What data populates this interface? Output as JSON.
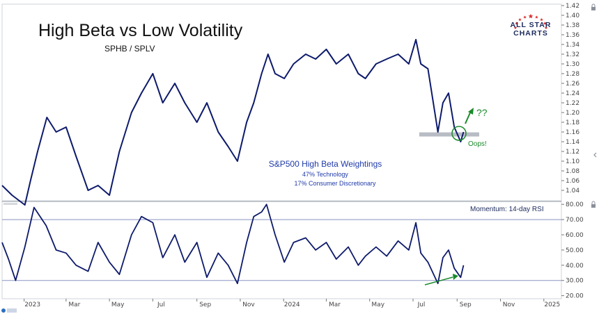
{
  "chart_data": [
    {
      "type": "line",
      "title": "High Beta vs Low Volatility",
      "subtitle": "SPHB / SPLV",
      "series": [
        {
          "x": [
            "2022-12-01",
            "2022-12-15",
            "2023-01-02",
            "2023-01-10",
            "2023-01-20",
            "2023-02-02",
            "2023-02-15",
            "2023-03-01",
            "2023-03-15",
            "2023-04-01",
            "2023-04-15",
            "2023-05-01",
            "2023-05-15",
            "2023-06-01",
            "2023-06-15",
            "2023-07-01",
            "2023-07-15",
            "2023-08-01",
            "2023-08-15",
            "2023-09-01",
            "2023-09-15",
            "2023-10-01",
            "2023-10-15",
            "2023-10-28",
            "2023-11-10",
            "2023-11-20",
            "2023-12-01",
            "2023-12-10",
            "2023-12-20",
            "2024-01-02",
            "2024-01-15",
            "2024-02-01",
            "2024-02-15",
            "2024-03-01",
            "2024-03-15",
            "2024-04-01",
            "2024-04-15",
            "2024-04-25",
            "2024-05-10",
            "2024-05-25",
            "2024-06-10",
            "2024-06-25",
            "2024-07-05",
            "2024-07-12",
            "2024-07-22",
            "2024-08-05",
            "2024-08-12",
            "2024-08-20",
            "2024-08-28",
            "2024-09-06",
            "2024-09-10"
          ],
          "values": [
            1.05,
            1.03,
            1.01,
            1.06,
            1.12,
            1.19,
            1.16,
            1.17,
            1.11,
            1.04,
            1.05,
            1.03,
            1.12,
            1.2,
            1.24,
            1.28,
            1.22,
            1.26,
            1.22,
            1.18,
            1.22,
            1.16,
            1.13,
            1.1,
            1.18,
            1.22,
            1.28,
            1.32,
            1.28,
            1.27,
            1.3,
            1.32,
            1.31,
            1.33,
            1.3,
            1.32,
            1.28,
            1.27,
            1.3,
            1.31,
            1.32,
            1.3,
            1.35,
            1.3,
            1.29,
            1.16,
            1.22,
            1.24,
            1.17,
            1.14,
            1.16
          ]
        }
      ],
      "y_ticks": [
        "1.42",
        "1.40",
        "1.38",
        "1.36",
        "1.34",
        "1.32",
        "1.30",
        "1.28",
        "1.26",
        "1.24",
        "1.22",
        "1.20",
        "1.18",
        "1.16",
        "1.14",
        "1.12",
        "1.10",
        "1.08",
        "1.06",
        "1.04"
      ],
      "ylim": [
        1.02,
        1.42
      ],
      "support_level": 1.155,
      "annotations": {
        "weightings_title": "S&P500 High Beta Weightings",
        "weighting_1": "47% Technology",
        "weighting_2": "17% Consumer Discretionary",
        "question": "??",
        "oops": "Oops!"
      }
    },
    {
      "type": "line",
      "title": "Momentum: 14-day RSI",
      "series": [
        {
          "x": [
            "2022-12-01",
            "2022-12-10",
            "2022-12-20",
            "2023-01-02",
            "2023-01-15",
            "2023-02-01",
            "2023-02-15",
            "2023-03-01",
            "2023-03-15",
            "2023-04-01",
            "2023-04-15",
            "2023-05-01",
            "2023-05-15",
            "2023-06-01",
            "2023-06-15",
            "2023-07-01",
            "2023-07-15",
            "2023-08-01",
            "2023-08-15",
            "2023-09-01",
            "2023-09-15",
            "2023-10-01",
            "2023-10-15",
            "2023-10-28",
            "2023-11-10",
            "2023-11-20",
            "2023-12-01",
            "2023-12-08",
            "2023-12-20",
            "2024-01-02",
            "2024-01-15",
            "2024-02-01",
            "2024-02-15",
            "2024-03-01",
            "2024-03-15",
            "2024-04-01",
            "2024-04-15",
            "2024-04-25",
            "2024-05-10",
            "2024-05-25",
            "2024-06-10",
            "2024-06-25",
            "2024-07-05",
            "2024-07-12",
            "2024-07-22",
            "2024-08-05",
            "2024-08-12",
            "2024-08-20",
            "2024-08-28",
            "2024-09-06",
            "2024-09-10"
          ],
          "values": [
            55,
            44,
            30,
            52,
            78,
            66,
            50,
            48,
            40,
            36,
            55,
            42,
            34,
            60,
            72,
            68,
            45,
            60,
            42,
            55,
            32,
            48,
            40,
            28,
            55,
            72,
            75,
            80,
            60,
            42,
            55,
            58,
            50,
            55,
            44,
            52,
            40,
            46,
            52,
            46,
            56,
            50,
            68,
            48,
            42,
            28,
            45,
            50,
            38,
            32,
            40
          ]
        }
      ],
      "y_ticks": [
        "80.00",
        "70.00",
        "60.00",
        "50.00",
        "40.00",
        "30.00",
        "20.00"
      ],
      "ylim": [
        18,
        81
      ],
      "reference_lines": [
        70,
        30
      ],
      "x_ticks": [
        "2023",
        "Mar",
        "May",
        "Jul",
        "Sep",
        "Nov",
        "2024",
        "Mar",
        "May",
        "Jul",
        "Sep",
        "Nov",
        "2025"
      ]
    }
  ],
  "logo": {
    "line1": "ALL STAR",
    "line2": "CHARTS"
  },
  "colors": {
    "line": "#0d1a6b",
    "annotation_blue": "#1f3aa8",
    "annotation_green": "#1a8a2a",
    "logo_star": "#d8322f",
    "support_band": "#b8bcc4",
    "reference_line": "#8a93c2"
  }
}
